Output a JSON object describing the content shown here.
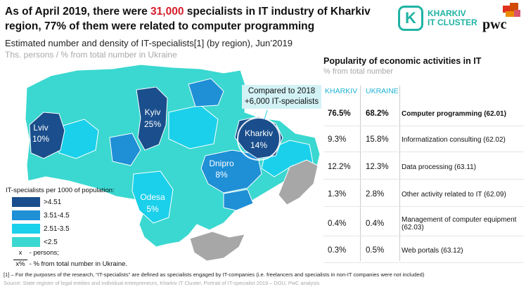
{
  "headline": {
    "part1": "As of April 2019, there were ",
    "highlight": "31,000",
    "part2": " specialists in IT industry of Kharkiv region, 77% of them were related to computer programming"
  },
  "brand": {
    "badge_letter": "K",
    "line1": "KHARKIV",
    "line2": "IT CLUSTER",
    "partner": "pwc"
  },
  "map": {
    "subtitle": "Estimated number and density of IT-specialists[1] (by region), Jun’2019",
    "units": "Ths. persons / % from total number in Ukraine",
    "callout_line1": "Compared to 2018",
    "callout_line2": "+6,000 IT-specialists",
    "colors": {
      "dark": "#1a4e8c",
      "mid": "#1f8fd6",
      "light": "#1bd0ea",
      "teal": "#3ad8d0",
      "na": "#a7a7a7"
    },
    "labels": [
      {
        "name": "Lviv",
        "value": "10%"
      },
      {
        "name": "Kyiv",
        "value": "25%"
      },
      {
        "name": "Kharkiv",
        "value": "14%"
      },
      {
        "name": "Dnipro",
        "value": "8%"
      },
      {
        "name": "Odesa",
        "value": "5%"
      }
    ],
    "legend": {
      "title": "IT-specialists per 1000 of population:",
      "items": [
        {
          "label": ">4.51",
          "color": "#1a4e8c"
        },
        {
          "label": "3.51-4.5",
          "color": "#1f8fd6"
        },
        {
          "label": "2.51-3.5",
          "color": "#1bd0ea"
        },
        {
          "label": "<2.5",
          "color": "#3ad8d0"
        }
      ],
      "note1_key": "x",
      "note1": " - persons;",
      "note2_key": "x%",
      "note2": " - % from total number in Ukraine."
    }
  },
  "popularity": {
    "title": "Popularity of economic activities in IT",
    "units": "% from total number",
    "col_kharkiv": "KHARKIV",
    "col_ukraine": "UKRAINE",
    "rows": [
      {
        "kharkiv": "76.5%",
        "ukraine": "68.2%",
        "activity": "Computer programming (62.01)"
      },
      {
        "kharkiv": "9.3%",
        "ukraine": "15.8%",
        "activity": "Informatization consulting (62.02)"
      },
      {
        "kharkiv": "12.2%",
        "ukraine": "12.3%",
        "activity": "Data processing (63.11)"
      },
      {
        "kharkiv": "1.3%",
        "ukraine": "2.8%",
        "activity": "Other activity related to IT (62.09)"
      },
      {
        "kharkiv": "0.4%",
        "ukraine": "0.4%",
        "activity": "Management of computer equipment (62.03)"
      },
      {
        "kharkiv": "0.3%",
        "ukraine": "0.5%",
        "activity": "Web portals (63.12)"
      }
    ]
  },
  "chart_data": {
    "type": "table",
    "title": "Popularity of economic activities in IT",
    "subtitle": "% from total number",
    "columns": [
      "KHARKIV",
      "UKRAINE"
    ],
    "categories": [
      "Computer programming (62.01)",
      "Informatization consulting (62.02)",
      "Data processing (63.11)",
      "Other activity related to IT (62.09)",
      "Management of computer equipment (62.03)",
      "Web portals (63.12)"
    ],
    "series": [
      {
        "name": "KHARKIV",
        "values": [
          76.5,
          9.3,
          12.2,
          1.3,
          0.4,
          0.3
        ]
      },
      {
        "name": "UKRAINE",
        "values": [
          68.2,
          15.8,
          12.3,
          2.8,
          0.4,
          0.5
        ]
      }
    ],
    "regions_share_of_ukraine_pct": {
      "Lviv": 10,
      "Kyiv": 25,
      "Kharkiv": 14,
      "Dnipro": 8,
      "Odesa": 5
    }
  },
  "footnote": "[1] – For the purposes of the research, “IT-specialists” are defined as specialists engaged by IT-companies (i.e. freelancers and specialists in non-IT companies were not included)",
  "source": "Source: State register of legal entities and individual entrepreneurs, Kharkiv IT Cluster, Portrait of IT-specialist 2019 – DOU, PwC analysis"
}
